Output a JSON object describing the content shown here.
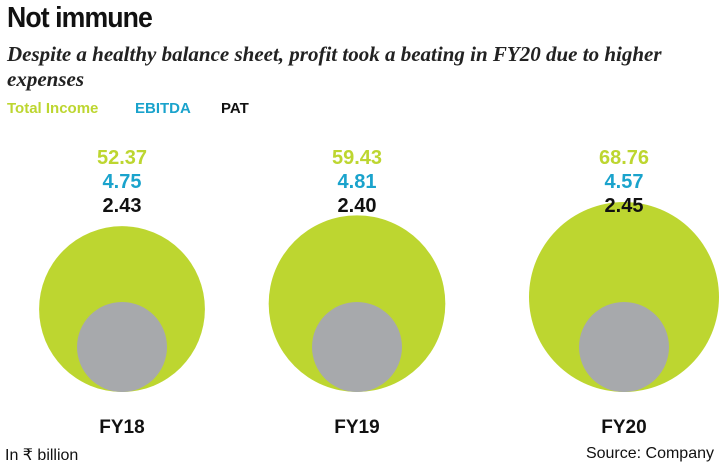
{
  "header": {
    "title": "Not immune",
    "subtitle": "Despite a healthy balance sheet, profit took a beating in FY20 due to higher expenses"
  },
  "legend": {
    "total_income": "Total Income",
    "ebitda": "EBITDA",
    "pat": "PAT"
  },
  "colors": {
    "total_income": "#bdd630",
    "ebitda": "#1aa3cc",
    "pat": "#111111",
    "inner_circle": "#a7a9ac"
  },
  "chart_data": {
    "type": "bubble",
    "categories": [
      "FY18",
      "FY19",
      "FY20"
    ],
    "series": [
      {
        "name": "Total Income",
        "values": [
          52.37,
          59.43,
          68.76
        ]
      },
      {
        "name": "EBITDA",
        "values": [
          4.75,
          4.81,
          4.57
        ]
      },
      {
        "name": "PAT",
        "values": [
          2.43,
          2.4,
          2.45
        ]
      }
    ],
    "value_labels": [
      [
        "52.37",
        "4.75",
        "2.43"
      ],
      [
        "59.43",
        "4.81",
        "2.40"
      ],
      [
        "68.76",
        "4.57",
        "2.45"
      ]
    ],
    "unit_note": "In ₹ billion"
  },
  "footer": {
    "unit": "In ₹ billion",
    "source": "Source: Company"
  }
}
